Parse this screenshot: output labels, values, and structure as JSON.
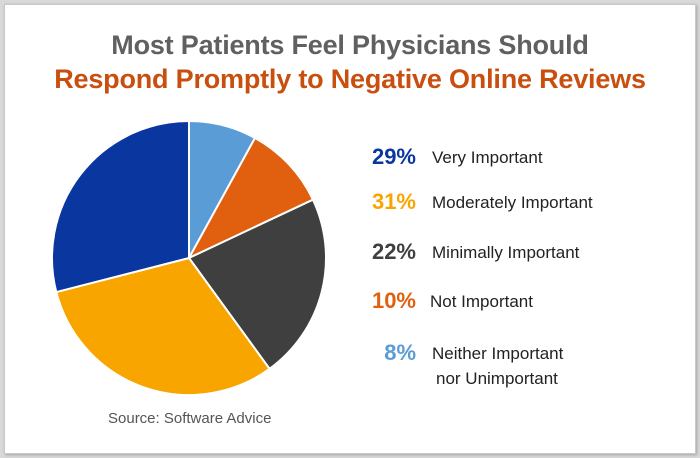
{
  "title": {
    "line1": "Most Patients Feel Physicians Should",
    "line2": "Respond Promptly to Negative Online Reviews"
  },
  "source": "Source: Software Advice",
  "chart_data": {
    "type": "pie",
    "title": "Most Patients Feel Physicians Should Respond Promptly to Negative Online Reviews",
    "slices": [
      {
        "label": "Very Important",
        "value": 29,
        "pct_label": "29%",
        "color": "#0a36a0"
      },
      {
        "label": "Moderately Important",
        "value": 31,
        "pct_label": "31%",
        "color": "#f8a500"
      },
      {
        "label": "Minimally Important",
        "value": 22,
        "pct_label": "22%",
        "color": "#3f3f3f"
      },
      {
        "label": "Not Important",
        "value": 10,
        "pct_label": "10%",
        "color": "#e06010"
      },
      {
        "label": "Neither Important",
        "label_line2": "nor Unimportant",
        "value": 8,
        "pct_label": "8%",
        "color": "#5a9cd6"
      }
    ],
    "start_angle_deg": 0,
    "direction": "clockwise-from-top, starting with smallest slice",
    "draw_order": [
      4,
      3,
      2,
      1,
      0
    ]
  }
}
